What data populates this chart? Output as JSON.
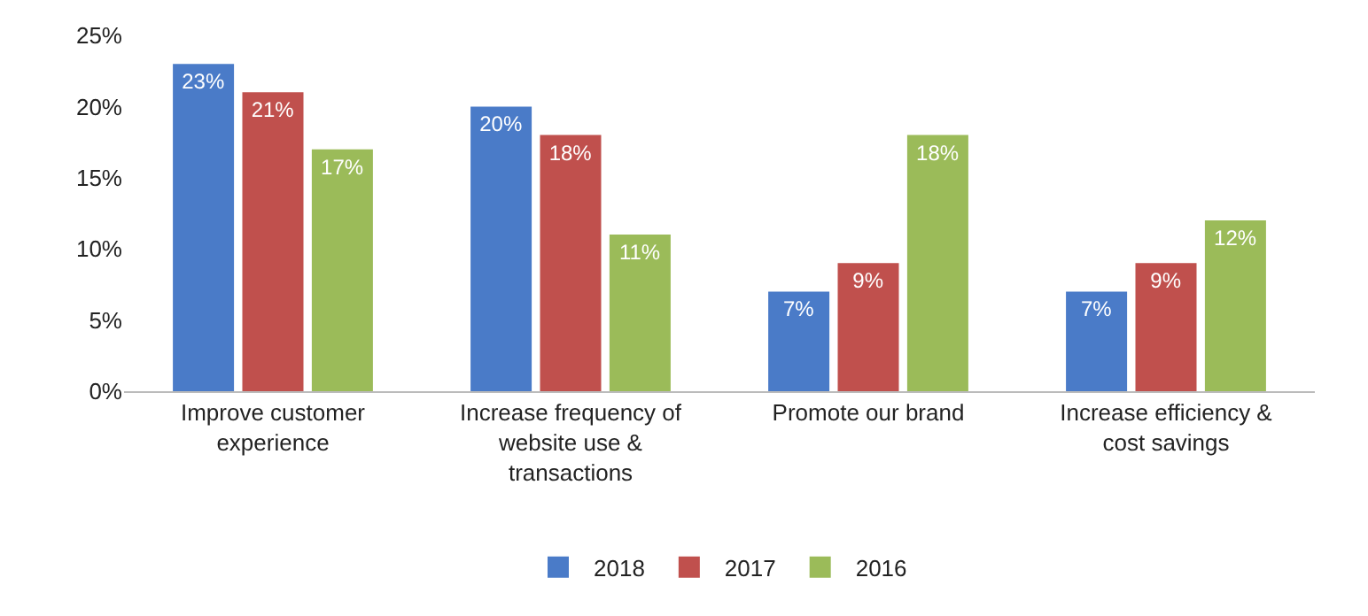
{
  "chart_data": {
    "type": "bar",
    "categories": [
      "Improve customer\nexperience",
      "Increase frequency of\nwebsite use &\ntransactions",
      "Promote our brand",
      "Increase efficiency &\ncost savings"
    ],
    "series": [
      {
        "name": "2018",
        "color": "#4a7bc8",
        "values": [
          23,
          20,
          7,
          7
        ],
        "value_labels": [
          "23%",
          "20%",
          "7%",
          "7%"
        ]
      },
      {
        "name": "2017",
        "color": "#c0504d",
        "values": [
          21,
          18,
          9,
          9
        ],
        "value_labels": [
          "21%",
          "18%",
          "9%",
          "9%"
        ]
      },
      {
        "name": "2016",
        "color": "#9bbb59",
        "values": [
          17,
          11,
          18,
          12
        ],
        "value_labels": [
          "17%",
          "11%",
          "18%",
          "12%"
        ]
      }
    ],
    "ylim": [
      0,
      25
    ],
    "yticks": [
      {
        "value": 0,
        "label": "0%"
      },
      {
        "value": 5,
        "label": "5%"
      },
      {
        "value": 10,
        "label": "10%"
      },
      {
        "value": 15,
        "label": "15%"
      },
      {
        "value": 20,
        "label": "20%"
      },
      {
        "value": 25,
        "label": "25%"
      }
    ],
    "legend": "bottom"
  }
}
